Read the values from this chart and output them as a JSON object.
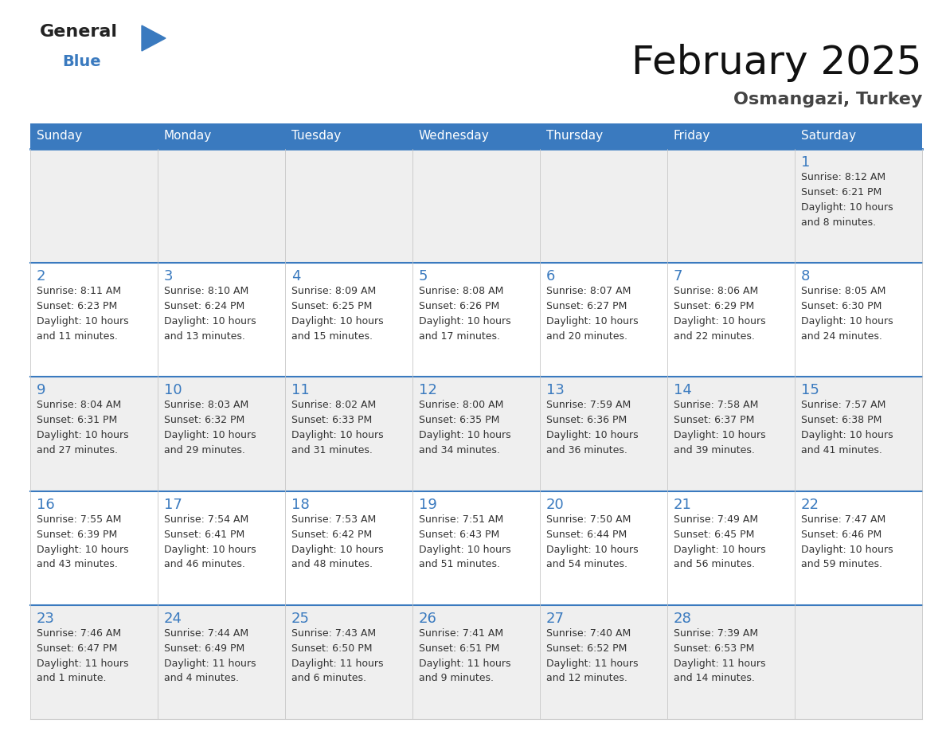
{
  "title": "February 2025",
  "subtitle": "Osmangazi, Turkey",
  "header_color": "#3a7abf",
  "header_text_color": "#ffffff",
  "cell_bg_even": "#efefef",
  "cell_bg_odd": "#ffffff",
  "day_number_color": "#3a7abf",
  "info_text_color": "#333333",
  "separator_color": "#3a7abf",
  "border_color": "#cccccc",
  "days_of_week": [
    "Sunday",
    "Monday",
    "Tuesday",
    "Wednesday",
    "Thursday",
    "Friday",
    "Saturday"
  ],
  "calendar_data": [
    [
      null,
      null,
      null,
      null,
      null,
      null,
      {
        "day": "1",
        "sunrise": "8:12 AM",
        "sunset": "6:21 PM",
        "daylight_line1": "Daylight: 10 hours",
        "daylight_line2": "and 8 minutes."
      }
    ],
    [
      {
        "day": "2",
        "sunrise": "8:11 AM",
        "sunset": "6:23 PM",
        "daylight_line1": "Daylight: 10 hours",
        "daylight_line2": "and 11 minutes."
      },
      {
        "day": "3",
        "sunrise": "8:10 AM",
        "sunset": "6:24 PM",
        "daylight_line1": "Daylight: 10 hours",
        "daylight_line2": "and 13 minutes."
      },
      {
        "day": "4",
        "sunrise": "8:09 AM",
        "sunset": "6:25 PM",
        "daylight_line1": "Daylight: 10 hours",
        "daylight_line2": "and 15 minutes."
      },
      {
        "day": "5",
        "sunrise": "8:08 AM",
        "sunset": "6:26 PM",
        "daylight_line1": "Daylight: 10 hours",
        "daylight_line2": "and 17 minutes."
      },
      {
        "day": "6",
        "sunrise": "8:07 AM",
        "sunset": "6:27 PM",
        "daylight_line1": "Daylight: 10 hours",
        "daylight_line2": "and 20 minutes."
      },
      {
        "day": "7",
        "sunrise": "8:06 AM",
        "sunset": "6:29 PM",
        "daylight_line1": "Daylight: 10 hours",
        "daylight_line2": "and 22 minutes."
      },
      {
        "day": "8",
        "sunrise": "8:05 AM",
        "sunset": "6:30 PM",
        "daylight_line1": "Daylight: 10 hours",
        "daylight_line2": "and 24 minutes."
      }
    ],
    [
      {
        "day": "9",
        "sunrise": "8:04 AM",
        "sunset": "6:31 PM",
        "daylight_line1": "Daylight: 10 hours",
        "daylight_line2": "and 27 minutes."
      },
      {
        "day": "10",
        "sunrise": "8:03 AM",
        "sunset": "6:32 PM",
        "daylight_line1": "Daylight: 10 hours",
        "daylight_line2": "and 29 minutes."
      },
      {
        "day": "11",
        "sunrise": "8:02 AM",
        "sunset": "6:33 PM",
        "daylight_line1": "Daylight: 10 hours",
        "daylight_line2": "and 31 minutes."
      },
      {
        "day": "12",
        "sunrise": "8:00 AM",
        "sunset": "6:35 PM",
        "daylight_line1": "Daylight: 10 hours",
        "daylight_line2": "and 34 minutes."
      },
      {
        "day": "13",
        "sunrise": "7:59 AM",
        "sunset": "6:36 PM",
        "daylight_line1": "Daylight: 10 hours",
        "daylight_line2": "and 36 minutes."
      },
      {
        "day": "14",
        "sunrise": "7:58 AM",
        "sunset": "6:37 PM",
        "daylight_line1": "Daylight: 10 hours",
        "daylight_line2": "and 39 minutes."
      },
      {
        "day": "15",
        "sunrise": "7:57 AM",
        "sunset": "6:38 PM",
        "daylight_line1": "Daylight: 10 hours",
        "daylight_line2": "and 41 minutes."
      }
    ],
    [
      {
        "day": "16",
        "sunrise": "7:55 AM",
        "sunset": "6:39 PM",
        "daylight_line1": "Daylight: 10 hours",
        "daylight_line2": "and 43 minutes."
      },
      {
        "day": "17",
        "sunrise": "7:54 AM",
        "sunset": "6:41 PM",
        "daylight_line1": "Daylight: 10 hours",
        "daylight_line2": "and 46 minutes."
      },
      {
        "day": "18",
        "sunrise": "7:53 AM",
        "sunset": "6:42 PM",
        "daylight_line1": "Daylight: 10 hours",
        "daylight_line2": "and 48 minutes."
      },
      {
        "day": "19",
        "sunrise": "7:51 AM",
        "sunset": "6:43 PM",
        "daylight_line1": "Daylight: 10 hours",
        "daylight_line2": "and 51 minutes."
      },
      {
        "day": "20",
        "sunrise": "7:50 AM",
        "sunset": "6:44 PM",
        "daylight_line1": "Daylight: 10 hours",
        "daylight_line2": "and 54 minutes."
      },
      {
        "day": "21",
        "sunrise": "7:49 AM",
        "sunset": "6:45 PM",
        "daylight_line1": "Daylight: 10 hours",
        "daylight_line2": "and 56 minutes."
      },
      {
        "day": "22",
        "sunrise": "7:47 AM",
        "sunset": "6:46 PM",
        "daylight_line1": "Daylight: 10 hours",
        "daylight_line2": "and 59 minutes."
      }
    ],
    [
      {
        "day": "23",
        "sunrise": "7:46 AM",
        "sunset": "6:47 PM",
        "daylight_line1": "Daylight: 11 hours",
        "daylight_line2": "and 1 minute."
      },
      {
        "day": "24",
        "sunrise": "7:44 AM",
        "sunset": "6:49 PM",
        "daylight_line1": "Daylight: 11 hours",
        "daylight_line2": "and 4 minutes."
      },
      {
        "day": "25",
        "sunrise": "7:43 AM",
        "sunset": "6:50 PM",
        "daylight_line1": "Daylight: 11 hours",
        "daylight_line2": "and 6 minutes."
      },
      {
        "day": "26",
        "sunrise": "7:41 AM",
        "sunset": "6:51 PM",
        "daylight_line1": "Daylight: 11 hours",
        "daylight_line2": "and 9 minutes."
      },
      {
        "day": "27",
        "sunrise": "7:40 AM",
        "sunset": "6:52 PM",
        "daylight_line1": "Daylight: 11 hours",
        "daylight_line2": "and 12 minutes."
      },
      {
        "day": "28",
        "sunrise": "7:39 AM",
        "sunset": "6:53 PM",
        "daylight_line1": "Daylight: 11 hours",
        "daylight_line2": "and 14 minutes."
      },
      null
    ]
  ],
  "fig_width": 11.88,
  "fig_height": 9.18,
  "dpi": 100
}
